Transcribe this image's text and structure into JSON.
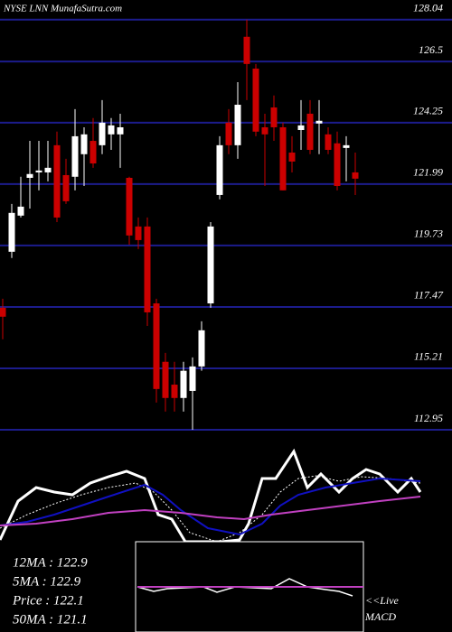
{
  "chart_data": {
    "type": "candlestick",
    "title": "NYSE LNN MunafaSutra.com",
    "ylim": [
      112.95,
      128.04
    ],
    "yticks": [
      128.04,
      126.5,
      124.25,
      121.99,
      119.73,
      117.47,
      115.21,
      112.95
    ],
    "grid": true,
    "grid_color": "#1c1c8c",
    "up_color": "#ffffff",
    "down_color": "#cc0000",
    "open": [
      117.44,
      119.5,
      120.83,
      122.22,
      122.42,
      122.42,
      123.42,
      122.32,
      122.26,
      123.09,
      123.58,
      123.42,
      123.82,
      123.82,
      122.22,
      120.43,
      120.43,
      117.6,
      115.45,
      114.61,
      114.12,
      114.38,
      115.28,
      117.6,
      121.59,
      124.25,
      123.42,
      127.41,
      126.24,
      124.08,
      124.81,
      124.08,
      123.15,
      123.98,
      124.58,
      124.22,
      123.82,
      123.49,
      123.32,
      122.42
    ],
    "high": [
      117.77,
      121.26,
      122.26,
      123.58,
      123.58,
      123.58,
      123.92,
      122.92,
      124.75,
      124.08,
      124.42,
      125.08,
      124.42,
      124.58,
      122.26,
      120.76,
      120.76,
      117.77,
      115.78,
      115.45,
      115.45,
      115.61,
      116.94,
      120.59,
      123.75,
      124.75,
      125.74,
      128.04,
      126.41,
      124.58,
      125.25,
      124.25,
      123.75,
      125.08,
      125.08,
      125.08,
      124.08,
      123.92,
      123.75,
      123.15
    ],
    "low": [
      116.28,
      119.27,
      120.76,
      121.09,
      121.76,
      122.09,
      120.59,
      121.26,
      121.76,
      121.92,
      122.59,
      123.09,
      123.25,
      122.59,
      119.76,
      119.6,
      116.77,
      113.95,
      113.62,
      113.62,
      113.62,
      112.95,
      115.12,
      117.44,
      121.43,
      123.09,
      122.92,
      125.08,
      123.75,
      121.92,
      123.58,
      121.76,
      122.42,
      123.25,
      123.09,
      123.09,
      123.09,
      121.76,
      122.09,
      121.59
    ],
    "close": [
      117.11,
      120.93,
      121.16,
      122.36,
      122.49,
      122.59,
      120.76,
      121.36,
      123.75,
      123.82,
      122.75,
      124.25,
      124.15,
      124.08,
      120.1,
      119.93,
      117.27,
      114.45,
      114.12,
      114.12,
      115.12,
      115.28,
      116.61,
      120.43,
      123.42,
      123.42,
      124.91,
      126.41,
      123.92,
      123.82,
      124.08,
      121.76,
      122.82,
      124.15,
      123.25,
      124.32,
      123.25,
      121.92,
      123.42,
      122.19
    ],
    "info_labels": [
      "12MA : 122.9",
      "5MA : 122.9",
      "Price  : 122.1",
      "50MA : 121.1"
    ],
    "macd_labels": [
      "<<Live",
      "MACD"
    ]
  }
}
